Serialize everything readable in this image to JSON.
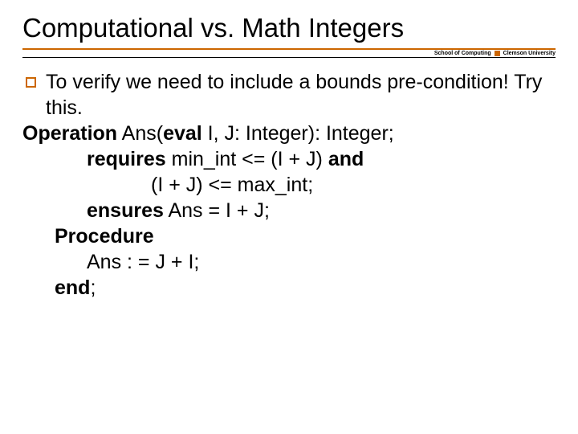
{
  "title": "Computational vs. Math Integers",
  "header": {
    "left": "School of Computing",
    "right": "Clemson University"
  },
  "bullet": {
    "text": "To verify we need to include a bounds pre-condition!  Try this."
  },
  "code": {
    "l1a": "Operation",
    "l1b": " Ans(",
    "l1c": "eval",
    "l1d": " I, J: Integer): Integer;",
    "l2a": "requires",
    "l2b": " min_int <= (I + J) ",
    "l2c": "and",
    "l3": "(I + J) <= max_int;",
    "l4a": "ensures",
    "l4b": " Ans = I + J;",
    "l5": "Procedure",
    "l6": "Ans : = J + I;",
    "l7a": "end",
    "l7b": ";"
  },
  "colors": {
    "accent": "#cc6600",
    "text": "#000000",
    "background": "#ffffff"
  },
  "typography": {
    "title_fontsize": 33,
    "body_fontsize": 25,
    "header_label_fontsize": 7,
    "font_family": "Verdana"
  }
}
